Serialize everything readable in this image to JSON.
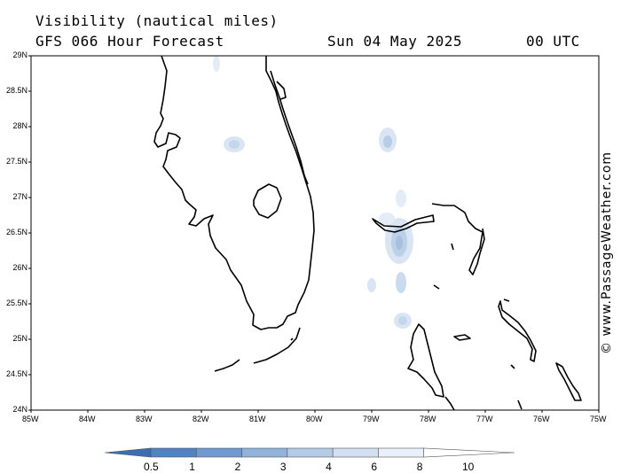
{
  "header": {
    "variable": "Visibility (nautical miles)",
    "model_line": "GFS 066 Hour Forecast",
    "date": "Sun 04 May 2025",
    "time": "00 UTC"
  },
  "map": {
    "lat_range": [
      24,
      29
    ],
    "lon_range": [
      -85,
      -75
    ],
    "lat_ticks": [
      {
        "value": 29,
        "label": "29N"
      },
      {
        "value": 28.5,
        "label": "28.5N"
      },
      {
        "value": 28,
        "label": "28N"
      },
      {
        "value": 27.5,
        "label": "27.5N"
      },
      {
        "value": 27,
        "label": "27N"
      },
      {
        "value": 26.5,
        "label": "26.5N"
      },
      {
        "value": 26,
        "label": "26N"
      },
      {
        "value": 25.5,
        "label": "25.5N"
      },
      {
        "value": 25,
        "label": "25N"
      },
      {
        "value": 24.5,
        "label": "24.5N"
      },
      {
        "value": 24,
        "label": "24N"
      }
    ],
    "lon_ticks": [
      {
        "value": -85,
        "label": "85W"
      },
      {
        "value": -84,
        "label": "84W"
      },
      {
        "value": -83,
        "label": "83W"
      },
      {
        "value": -82,
        "label": "82W"
      },
      {
        "value": -81,
        "label": "81W"
      },
      {
        "value": -80,
        "label": "80W"
      },
      {
        "value": -79,
        "label": "79W"
      },
      {
        "value": -78,
        "label": "78W"
      },
      {
        "value": -77,
        "label": "77W"
      },
      {
        "value": -76,
        "label": "76W"
      },
      {
        "value": -75,
        "label": "75W"
      }
    ]
  },
  "legend": {
    "labels": [
      "0.5",
      "1",
      "2",
      "3",
      "4",
      "6",
      "8",
      "10"
    ],
    "colors": [
      "#3a6fb4",
      "#4f83c2",
      "#6f9ad0",
      "#91b2db",
      "#b3cbe6",
      "#d2e0f1",
      "#e9f0f9",
      "#ffffff"
    ]
  },
  "credit": "© www.PassageWeather.com"
}
